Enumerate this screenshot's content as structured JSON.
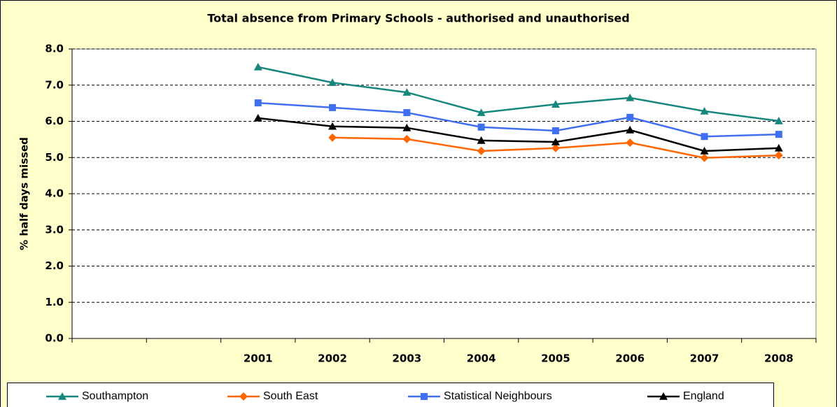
{
  "chart_data": {
    "type": "line",
    "title": "Total absence from Primary Schools - authorised and unauthorised",
    "y_label": "% half days missed",
    "categories": [
      null,
      null,
      "2001",
      "2002",
      "2003",
      "2004",
      "2005",
      "2006",
      "2007",
      "2008"
    ],
    "series": [
      {
        "name": "Southampton",
        "color": "#16877d",
        "marker": "triangle",
        "values": [
          null,
          null,
          7.5,
          7.07,
          6.8,
          6.24,
          6.47,
          6.65,
          6.28,
          6.01
        ]
      },
      {
        "name": "South East",
        "color": "#ff6600",
        "marker": "diamond",
        "values": [
          null,
          null,
          null,
          5.55,
          5.51,
          5.18,
          5.26,
          5.41,
          4.99,
          5.06
        ]
      },
      {
        "name": "Statistical Neighbours",
        "color": "#3f6ff0",
        "marker": "square",
        "values": [
          null,
          null,
          6.51,
          6.38,
          6.24,
          5.84,
          5.74,
          6.11,
          5.58,
          5.64
        ]
      },
      {
        "name": "England",
        "color": "#000000",
        "marker": "triangle",
        "values": [
          null,
          null,
          6.09,
          5.86,
          5.82,
          5.47,
          5.43,
          5.76,
          5.18,
          5.26
        ]
      }
    ],
    "ylim": [
      0,
      8
    ],
    "yticks": [
      {
        "value": 0,
        "label": "0.0"
      },
      {
        "value": 1,
        "label": "1.0"
      },
      {
        "value": 2,
        "label": "2.0"
      },
      {
        "value": 3,
        "label": "3.0"
      },
      {
        "value": 4,
        "label": "4.0"
      },
      {
        "value": 5,
        "label": "5.0"
      },
      {
        "value": 6,
        "label": "6.0"
      },
      {
        "value": 7,
        "label": "7.0"
      },
      {
        "value": 8,
        "label": "8.0"
      }
    ],
    "grid": true
  }
}
